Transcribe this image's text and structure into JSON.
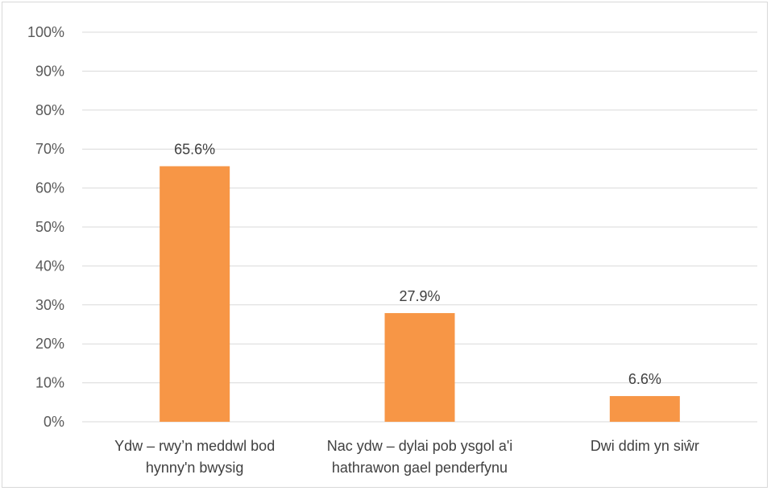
{
  "chart_data": {
    "type": "bar",
    "title": "",
    "xlabel": "",
    "ylabel": "",
    "categories": [
      [
        "Ydw – rwy’n meddwl bod",
        "hynny'n bwysig"
      ],
      [
        "Nac ydw – dylai pob ysgol a'i",
        "hathrawon gael penderfynu"
      ],
      [
        "Dwi ddim yn siŵr"
      ]
    ],
    "values": [
      65.6,
      27.9,
      6.6
    ],
    "data_labels": [
      "65.6%",
      "27.9%",
      "6.6%"
    ],
    "ylim": [
      0,
      100
    ],
    "yticks": [
      0,
      10,
      20,
      30,
      40,
      50,
      60,
      70,
      80,
      90,
      100
    ],
    "ytick_labels": [
      "0%",
      "10%",
      "20%",
      "30%",
      "40%",
      "50%",
      "60%",
      "70%",
      "80%",
      "90%",
      "100%"
    ],
    "grid": true,
    "legend": "none",
    "bar_color": "#F79646",
    "gridline_color": "#d9d9d9"
  }
}
